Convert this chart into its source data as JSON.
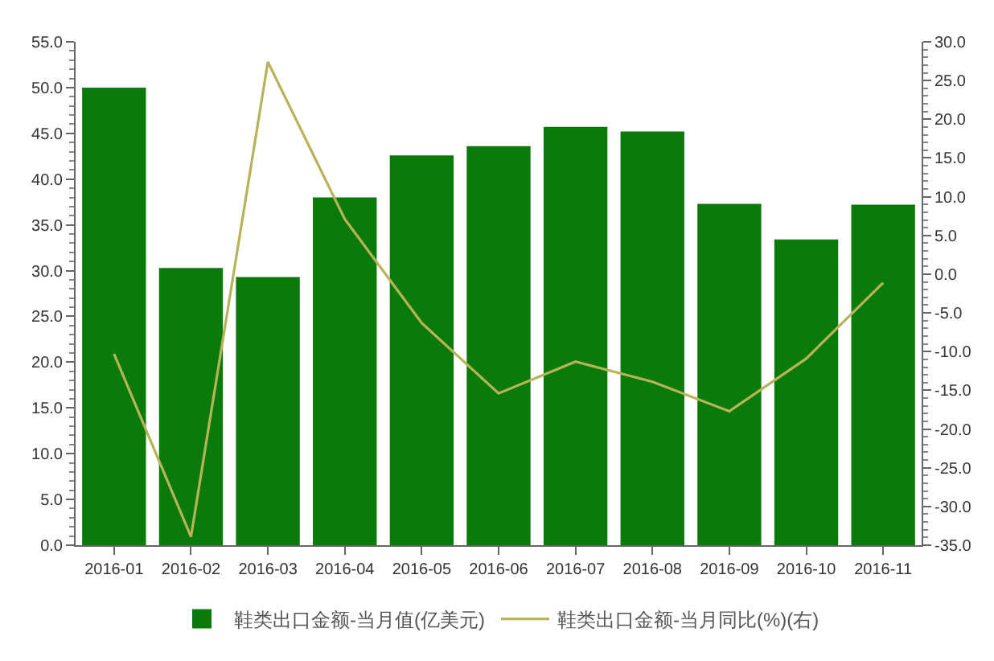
{
  "chart_data": {
    "type": "bar",
    "categories": [
      "2016-01",
      "2016-02",
      "2016-03",
      "2016-04",
      "2016-05",
      "2016-06",
      "2016-07",
      "2016-08",
      "2016-09",
      "2016-10",
      "2016-11"
    ],
    "series": [
      {
        "name": "鞋类出口金额-当月值(亿美元)",
        "color": "#0a7a0a",
        "values": [
          50.0,
          30.3,
          29.3,
          38.0,
          42.6,
          43.6,
          45.7,
          45.2,
          37.3,
          33.4,
          37.2
        ]
      },
      {
        "name": "鞋类出口金额-当月同比(%)(右)",
        "type": "line",
        "axis": "y2",
        "color": "#b8b35a",
        "values": [
          -10.3,
          -33.9,
          27.4,
          7.1,
          -6.3,
          -15.4,
          -11.3,
          -13.9,
          -17.7,
          -10.9,
          -1.1
        ]
      }
    ],
    "ylim": [
      0,
      55
    ],
    "yticks": [
      {
        "value": 0,
        "label": "0.0"
      },
      {
        "value": 5,
        "label": "5.0"
      },
      {
        "value": 10,
        "label": "10.0"
      },
      {
        "value": 15,
        "label": "15.0"
      },
      {
        "value": 20,
        "label": "20.0"
      },
      {
        "value": 25,
        "label": "25.0"
      },
      {
        "value": 30,
        "label": "30.0"
      },
      {
        "value": 35,
        "label": "35.0"
      },
      {
        "value": 40,
        "label": "40.0"
      },
      {
        "value": 45,
        "label": "45.0"
      },
      {
        "value": 50,
        "label": "50.0"
      },
      {
        "value": 55,
        "label": "55.0"
      }
    ],
    "y2lim": [
      -35,
      30
    ],
    "y2ticks": [
      {
        "value": -35,
        "label": "-35.0"
      },
      {
        "value": -30,
        "label": "-30.0"
      },
      {
        "value": -25,
        "label": "-25.0"
      },
      {
        "value": -20,
        "label": "-20.0"
      },
      {
        "value": -15,
        "label": "-15.0"
      },
      {
        "value": -10,
        "label": "-10.0"
      },
      {
        "value": -5,
        "label": "-5.0"
      },
      {
        "value": 0,
        "label": "0.0"
      },
      {
        "value": 5,
        "label": "5.0"
      },
      {
        "value": 10,
        "label": "10.0"
      },
      {
        "value": 15,
        "label": "15.0"
      },
      {
        "value": 20,
        "label": "20.0"
      },
      {
        "value": 25,
        "label": "25.0"
      },
      {
        "value": 30,
        "label": "30.0"
      }
    ],
    "legend": "bottom"
  }
}
